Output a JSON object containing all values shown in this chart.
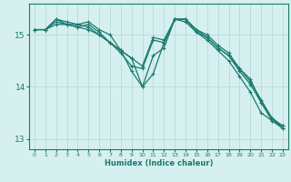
{
  "title": "",
  "xlabel": "Humidex (Indice chaleur)",
  "ylabel": "",
  "background_color": "#d6f0f0",
  "grid_color": "#b8dada",
  "line_color": "#1a7a6e",
  "xlim": [
    -0.5,
    23.5
  ],
  "ylim": [
    12.8,
    15.6
  ],
  "yticks": [
    13,
    14,
    15
  ],
  "xticks": [
    0,
    1,
    2,
    3,
    4,
    5,
    6,
    7,
    8,
    9,
    10,
    11,
    12,
    13,
    14,
    15,
    16,
    17,
    18,
    19,
    20,
    21,
    22,
    23
  ],
  "lines": [
    {
      "x": [
        0,
        1,
        2,
        3,
        4,
        5,
        6,
        7,
        8,
        9,
        10,
        11,
        12,
        13,
        14,
        15,
        16,
        17,
        18,
        19,
        20,
        21,
        22,
        23
      ],
      "y": [
        15.1,
        15.1,
        15.2,
        15.2,
        15.15,
        15.1,
        15.0,
        14.85,
        14.7,
        14.55,
        14.4,
        14.95,
        14.9,
        15.3,
        15.25,
        15.05,
        14.95,
        14.75,
        14.6,
        14.3,
        14.05,
        13.7,
        13.35,
        13.25
      ]
    },
    {
      "x": [
        0,
        1,
        2,
        3,
        4,
        5,
        6,
        7,
        8,
        9,
        10,
        11,
        12,
        13,
        14,
        15,
        16,
        17,
        18,
        19,
        20,
        21,
        22,
        23
      ],
      "y": [
        15.1,
        15.1,
        15.25,
        15.2,
        15.15,
        15.2,
        15.05,
        14.85,
        14.7,
        14.55,
        14.0,
        14.6,
        14.75,
        15.3,
        15.3,
        15.1,
        15.0,
        14.8,
        14.65,
        14.35,
        14.1,
        13.75,
        13.4,
        13.25
      ]
    },
    {
      "x": [
        1,
        2,
        3,
        4,
        5,
        6,
        7,
        8,
        9,
        10,
        11,
        12,
        13,
        14,
        15,
        16,
        17,
        18,
        19,
        20,
        21,
        22,
        23
      ],
      "y": [
        15.1,
        15.3,
        15.2,
        15.2,
        15.25,
        15.1,
        15.0,
        14.7,
        14.3,
        14.0,
        14.25,
        14.85,
        15.3,
        15.3,
        15.05,
        14.9,
        14.7,
        14.5,
        14.2,
        13.9,
        13.5,
        13.35,
        13.2
      ]
    },
    {
      "x": [
        0,
        1,
        2,
        3,
        4,
        5,
        6,
        7,
        8,
        9,
        10,
        11,
        12,
        13,
        14,
        15,
        16,
        17,
        18,
        19,
        20,
        21,
        22,
        23
      ],
      "y": [
        15.1,
        15.1,
        15.3,
        15.25,
        15.2,
        15.15,
        15.0,
        14.85,
        14.65,
        14.4,
        14.35,
        14.9,
        14.85,
        15.3,
        15.3,
        15.1,
        14.95,
        14.75,
        14.6,
        14.35,
        14.15,
        13.7,
        13.4,
        13.2
      ]
    }
  ]
}
